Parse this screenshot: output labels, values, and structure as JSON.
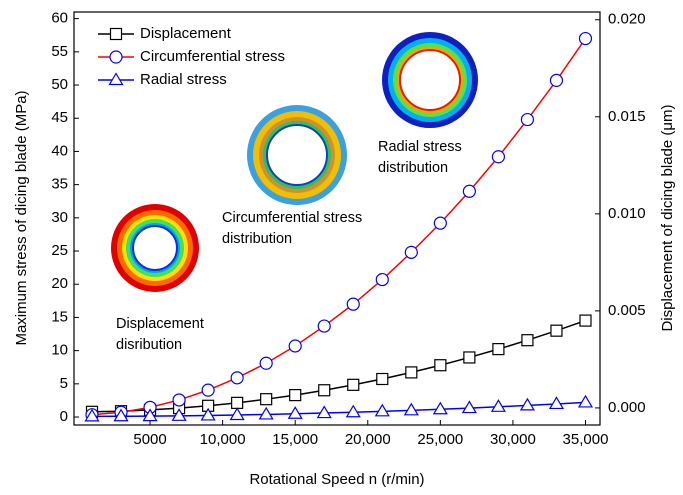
{
  "chart_data": {
    "type": "line",
    "xlabel": "Rotational Speed n (r/min)",
    "ylabel": "Maximum stress of dicing blade (MPa)",
    "y2label": "Displacement of dicing blade (μm)",
    "x": [
      1000,
      3000,
      5000,
      7000,
      9000,
      11000,
      13000,
      15000,
      17000,
      19000,
      21000,
      23000,
      25000,
      27000,
      29000,
      31000,
      33000,
      35000
    ],
    "series": [
      {
        "name": "Displacement",
        "color": "#000000",
        "marker": "square",
        "marker_color": "#000000",
        "axis": "y2",
        "values": [
          -0.0002,
          -0.00017,
          -0.0001,
          -1e-05,
          0.00011,
          0.00026,
          0.00045,
          0.00066,
          0.00091,
          0.00119,
          0.00149,
          0.00183,
          0.0022,
          0.0026,
          0.00303,
          0.00349,
          0.00398,
          0.0045
        ]
      },
      {
        "name": "Circumferential stress",
        "color": "#ff0000",
        "marker": "circle",
        "marker_color": "#0000ff",
        "values": [
          0.35,
          0.72,
          1.46,
          2.57,
          4.05,
          5.9,
          8.1,
          10.7,
          13.7,
          17.0,
          20.7,
          24.8,
          29.2,
          34.0,
          39.2,
          44.8,
          50.7,
          57.0
        ]
      },
      {
        "name": "Radial stress",
        "color": "#0000ff",
        "marker": "triangle",
        "marker_color": "#0000ff",
        "values": [
          0.1,
          0.12,
          0.14,
          0.18,
          0.24,
          0.31,
          0.39,
          0.49,
          0.6,
          0.72,
          0.86,
          1.01,
          1.17,
          1.35,
          1.54,
          1.75,
          1.97,
          2.2
        ]
      }
    ],
    "xlim": [
      -240,
      36000
    ],
    "xticks": [
      5000,
      {
        "value": 10000,
        "label": "10,000"
      },
      {
        "value": 15000,
        "label": "15,000"
      },
      {
        "value": 20000,
        "label": "20,000"
      },
      {
        "value": 25000,
        "label": "25,000"
      },
      {
        "value": 30000,
        "label": "30,000"
      },
      {
        "value": 35000,
        "label": "35,000"
      }
    ],
    "ylim": [
      -1.2,
      61
    ],
    "yticks": [
      0,
      5,
      10,
      15,
      20,
      25,
      30,
      35,
      40,
      45,
      50,
      55,
      60
    ],
    "y2lim": [
      -0.00088,
      0.0204
    ],
    "y2ticks": [
      {
        "value": 0,
        "label": "0.000"
      },
      {
        "value": 0.005,
        "label": "0.005"
      },
      {
        "value": 0.01,
        "label": "0.010"
      },
      {
        "value": 0.015,
        "label": "0.015"
      },
      {
        "value": 0.02,
        "label": "0.020"
      }
    ],
    "legend": "upper left",
    "annotations": [
      [
        "Displacement",
        "disribution"
      ],
      [
        "Circumferential stress",
        "distribution"
      ],
      [
        "Radial stress",
        "distribution"
      ]
    ]
  }
}
